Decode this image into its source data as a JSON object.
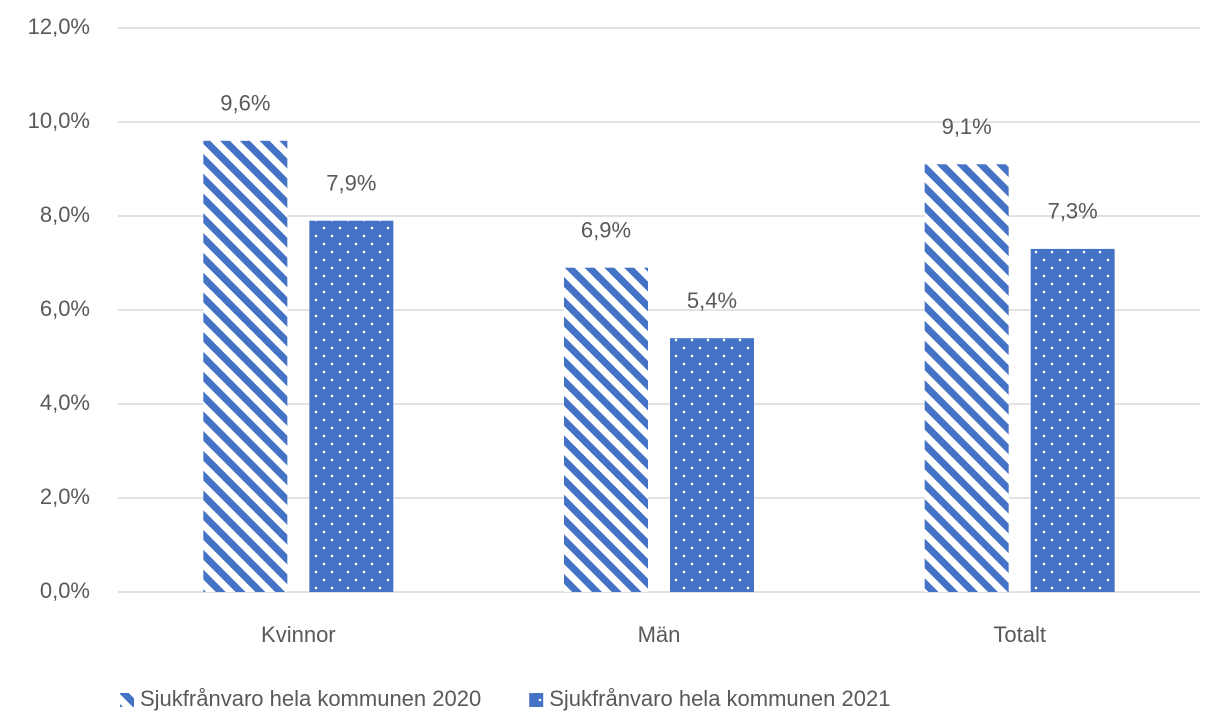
{
  "chart_data": {
    "type": "bar",
    "categories": [
      "Kvinnor",
      "Män",
      "Totalt"
    ],
    "series": [
      {
        "name": "Sjukfrånvaro hela kommunen 2020",
        "color": "#4472c4",
        "pattern": "stripes",
        "values": [
          9.6,
          6.9,
          9.1
        ],
        "value_labels": [
          "9,6%",
          "6,9%",
          "9,1%"
        ]
      },
      {
        "name": "Sjukfrånvaro hela kommunen 2021",
        "color": "#4472c4",
        "pattern": "dots",
        "values": [
          7.9,
          5.4,
          7.3
        ],
        "value_labels": [
          "7,9%",
          "5,4%",
          "7,3%"
        ]
      }
    ],
    "ylim": [
      0,
      12
    ],
    "yticks": [
      {
        "value": 0,
        "label": "0,0%"
      },
      {
        "value": 2,
        "label": "2,0%"
      },
      {
        "value": 4,
        "label": "4,0%"
      },
      {
        "value": 6,
        "label": "6,0%"
      },
      {
        "value": 8,
        "label": "8,0%"
      },
      {
        "value": 10,
        "label": "10,0%"
      },
      {
        "value": 12,
        "label": "12,0%"
      }
    ],
    "grid": true,
    "legend": "bottom"
  }
}
